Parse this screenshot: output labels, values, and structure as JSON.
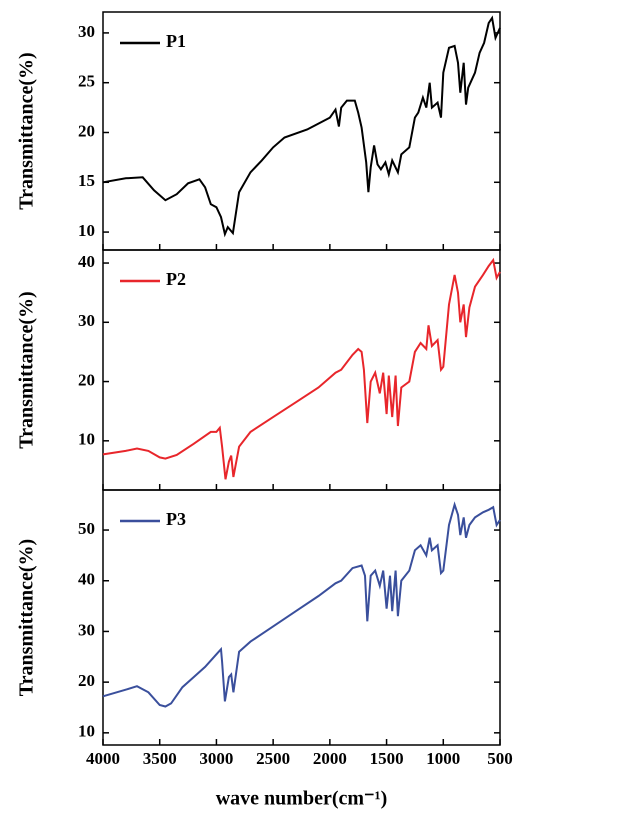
{
  "chart_data": [
    {
      "type": "line",
      "ylabel": "Transmittance(%)",
      "x": [
        4000,
        3800,
        3650,
        3550,
        3450,
        3350,
        3250,
        3150,
        3100,
        3050,
        3000,
        2960,
        2925,
        2900,
        2855,
        2800,
        2700,
        2600,
        2500,
        2400,
        2200,
        2000,
        1950,
        1920,
        1900,
        1850,
        1780,
        1750,
        1720,
        1680,
        1660,
        1640,
        1610,
        1580,
        1550,
        1510,
        1480,
        1450,
        1400,
        1370,
        1300,
        1250,
        1220,
        1180,
        1150,
        1120,
        1100,
        1050,
        1020,
        1000,
        950,
        900,
        870,
        850,
        820,
        800,
        780,
        720,
        680,
        640,
        600,
        570,
        540,
        500
      ],
      "series": [
        {
          "name": "P1",
          "color": "#000000",
          "values": [
            15,
            15.4,
            15.5,
            14.2,
            13.2,
            13.8,
            14.9,
            15.3,
            14.5,
            12.8,
            12.5,
            11.5,
            9.8,
            10.5,
            9.9,
            14,
            16,
            17.2,
            18.5,
            19.5,
            20.3,
            21.5,
            22.3,
            20.6,
            22.5,
            23.2,
            23.2,
            22,
            20.5,
            17,
            14,
            16.5,
            18.7,
            16.8,
            16.3,
            17,
            15.8,
            17.2,
            16,
            17.8,
            18.5,
            21.5,
            22,
            23.5,
            22.5,
            25,
            22.5,
            23,
            21.5,
            26,
            28.5,
            28.7,
            27,
            24,
            27,
            22.8,
            24.5,
            26,
            28,
            29,
            31,
            31.5,
            29.5,
            30.5
          ]
        }
      ],
      "xlim": [
        4000,
        500
      ],
      "ylim": [
        8.2,
        32.1
      ],
      "yticks": [
        10,
        15,
        20,
        25,
        30
      ],
      "legend": "upper left"
    },
    {
      "type": "line",
      "ylabel": "Transmittance(%)",
      "x": [
        4000,
        3800,
        3700,
        3600,
        3500,
        3450,
        3350,
        3200,
        3050,
        3000,
        2970,
        2950,
        2920,
        2890,
        2870,
        2850,
        2800,
        2700,
        2500,
        2300,
        2100,
        1950,
        1900,
        1800,
        1750,
        1720,
        1700,
        1670,
        1640,
        1600,
        1560,
        1530,
        1500,
        1480,
        1450,
        1420,
        1400,
        1370,
        1300,
        1250,
        1200,
        1150,
        1130,
        1100,
        1050,
        1020,
        1000,
        950,
        900,
        870,
        850,
        820,
        800,
        770,
        720,
        650,
        600,
        560,
        530,
        500
      ],
      "series": [
        {
          "name": "P2",
          "color": "#e8262b",
          "values": [
            7.7,
            8.3,
            8.7,
            8.3,
            7.2,
            7,
            7.6,
            9.5,
            11.5,
            11.5,
            12.2,
            9,
            3.5,
            6.5,
            7.5,
            3.9,
            9,
            11.5,
            14,
            16.5,
            19,
            21.5,
            22,
            24.5,
            25.5,
            25,
            22,
            13,
            20,
            21.5,
            18,
            21.5,
            14.5,
            21,
            14,
            21,
            12.5,
            19,
            20,
            25,
            26.5,
            25.5,
            29.5,
            26,
            27,
            22,
            22.5,
            33,
            38,
            35,
            30,
            33,
            27.5,
            32.5,
            36,
            38,
            39.5,
            40.5,
            37.5,
            38.5
          ]
        }
      ],
      "xlim": [
        4000,
        500
      ],
      "ylim": [
        1.7,
        42.2
      ],
      "yticks": [
        10,
        20,
        30,
        40
      ],
      "legend": "upper left"
    },
    {
      "type": "line",
      "ylabel": "Transmittance(%)",
      "xlabel": "wave number(cm⁻¹)",
      "x": [
        4000,
        3800,
        3700,
        3600,
        3500,
        3450,
        3400,
        3300,
        3200,
        3100,
        3000,
        2960,
        2950,
        2925,
        2890,
        2870,
        2850,
        2800,
        2700,
        2500,
        2300,
        2100,
        1950,
        1900,
        1800,
        1720,
        1690,
        1670,
        1640,
        1600,
        1560,
        1530,
        1500,
        1470,
        1450,
        1420,
        1400,
        1370,
        1300,
        1250,
        1200,
        1150,
        1120,
        1100,
        1050,
        1020,
        1000,
        950,
        900,
        870,
        850,
        820,
        800,
        770,
        720,
        650,
        600,
        560,
        530,
        500
      ],
      "series": [
        {
          "name": "P3",
          "color": "#3a4f9c",
          "values": [
            17.2,
            18.5,
            19.2,
            18,
            15.5,
            15.2,
            15.8,
            19,
            21,
            23,
            25.5,
            26.5,
            24,
            16.2,
            21,
            21.5,
            18,
            26,
            28,
            31,
            34,
            37,
            39.5,
            40,
            42.5,
            43,
            41,
            32,
            41,
            42,
            39,
            42,
            34.5,
            41,
            34,
            42,
            33,
            40,
            42,
            46,
            47,
            45,
            48.5,
            46,
            47,
            41.5,
            42,
            51,
            55,
            53,
            49,
            52.5,
            48.5,
            51,
            52.5,
            53.5,
            54,
            54.5,
            51,
            52
          ]
        }
      ],
      "xlim": [
        4000,
        500
      ],
      "ylim": [
        7.6,
        57.9
      ],
      "yticks": [
        10,
        20,
        30,
        40,
        50
      ],
      "xticks": [
        4000,
        3500,
        3000,
        2500,
        2000,
        1500,
        1000,
        500
      ],
      "legend": "upper left"
    }
  ]
}
